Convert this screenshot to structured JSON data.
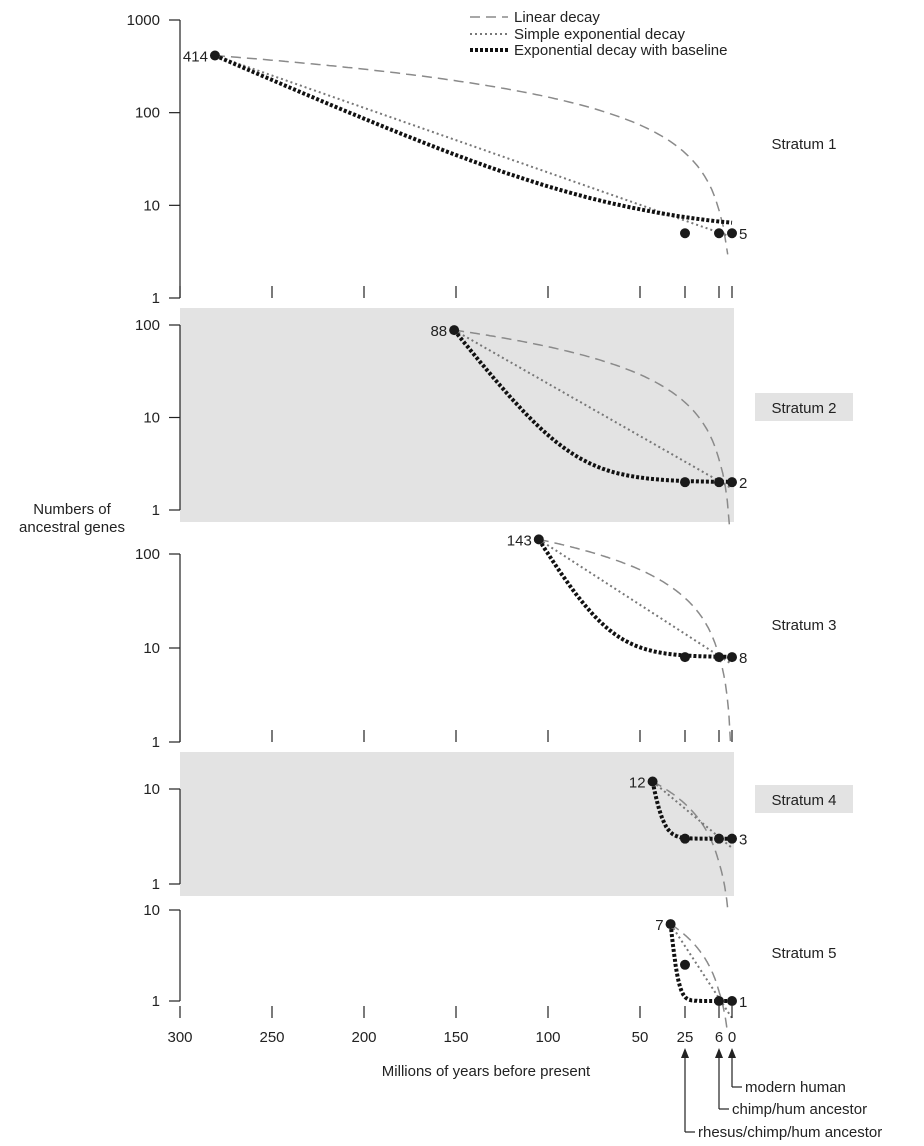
{
  "chart_data": {
    "type": "line",
    "ylabel": "Numbers of ancestral genes",
    "xlabel": "Millions of years before present",
    "x_ticks": [
      300,
      250,
      200,
      150,
      100,
      50,
      25,
      6,
      0
    ],
    "x_tick_labels": [
      "300",
      "250",
      "200",
      "150",
      "100",
      "50",
      "25",
      "6",
      "0"
    ],
    "y_scale": "log",
    "legend": {
      "placement": "top-right",
      "entries": [
        {
          "name": "Linear decay",
          "style": "dashed"
        },
        {
          "name": "Simple exponential decay",
          "style": "dotted"
        },
        {
          "name": "Exponential decay with baseline",
          "style": "thick-dotted"
        }
      ]
    },
    "strata": [
      {
        "label": "Stratum 1",
        "shaded": false,
        "ylim": [
          1,
          1000
        ],
        "y_ticks": [
          "1",
          "10",
          "100",
          "1000"
        ],
        "start_x": 281,
        "start_y": 414,
        "start_label": "414",
        "baseline_y": 5,
        "end_label": "5",
        "exp_rate": 0.0187,
        "points": [
          {
            "x": 281,
            "y": 414
          },
          {
            "x": 25,
            "y": 5
          },
          {
            "x": 6,
            "y": 5
          },
          {
            "x": 0,
            "y": 5
          }
        ]
      },
      {
        "label": "Stratum 2",
        "shaded": true,
        "ylim": [
          1,
          100
        ],
        "y_ticks": [
          "1",
          "10",
          "100"
        ],
        "start_x": 151,
        "start_y": 88,
        "start_label": "88",
        "baseline_y": 2,
        "end_label": "2",
        "exp_rate": 0.0292,
        "points": [
          {
            "x": 151,
            "y": 88
          },
          {
            "x": 25,
            "y": 2
          },
          {
            "x": 6,
            "y": 2
          },
          {
            "x": 0,
            "y": 2
          }
        ]
      },
      {
        "label": "Stratum 3",
        "shaded": false,
        "ylim": [
          1,
          100
        ],
        "y_ticks": [
          "1",
          "10",
          "100"
        ],
        "start_x": 105,
        "start_y": 143,
        "start_label": "143",
        "baseline_y": 8,
        "end_label": "8",
        "exp_rate": 0.0263,
        "points": [
          {
            "x": 105,
            "y": 143
          },
          {
            "x": 25,
            "y": 8
          },
          {
            "x": 6,
            "y": 8
          },
          {
            "x": 0,
            "y": 8
          }
        ]
      },
      {
        "label": "Stratum 4",
        "shaded": true,
        "ylim": [
          1,
          10
        ],
        "y_ticks": [
          "1",
          "10"
        ],
        "start_x": 43,
        "start_y": 12,
        "start_label": "12",
        "baseline_y": 3,
        "end_label": "3",
        "exp_rate": 0.0578,
        "points": [
          {
            "x": 43,
            "y": 12
          },
          {
            "x": 25,
            "y": 3
          },
          {
            "x": 6,
            "y": 3
          },
          {
            "x": 0,
            "y": 3
          }
        ]
      },
      {
        "label": "Stratum 5",
        "shaded": false,
        "ylim": [
          1,
          10
        ],
        "y_ticks": [
          "1",
          "10"
        ],
        "start_x": 33,
        "start_y": 7,
        "start_label": "7",
        "baseline_y": 1,
        "end_label": "1",
        "exp_rate": 0.1,
        "points": [
          {
            "x": 33,
            "y": 7
          },
          {
            "x": 25,
            "y": 2.5
          },
          {
            "x": 6,
            "y": 1
          },
          {
            "x": 0,
            "y": 1
          }
        ]
      }
    ],
    "annotations": [
      {
        "text": "modern human",
        "x": 0
      },
      {
        "text": "chimp/hum ancestor",
        "x": 6
      },
      {
        "text": "rhesus/chimp/hum ancestor",
        "x": 25
      }
    ],
    "colors": {
      "shade": "#e3e3e3",
      "stratum_box": "#e3e3e3",
      "linear": "#8a8a8a",
      "simple": "#777777",
      "baseline": "#111111",
      "axis": "#222222"
    }
  }
}
